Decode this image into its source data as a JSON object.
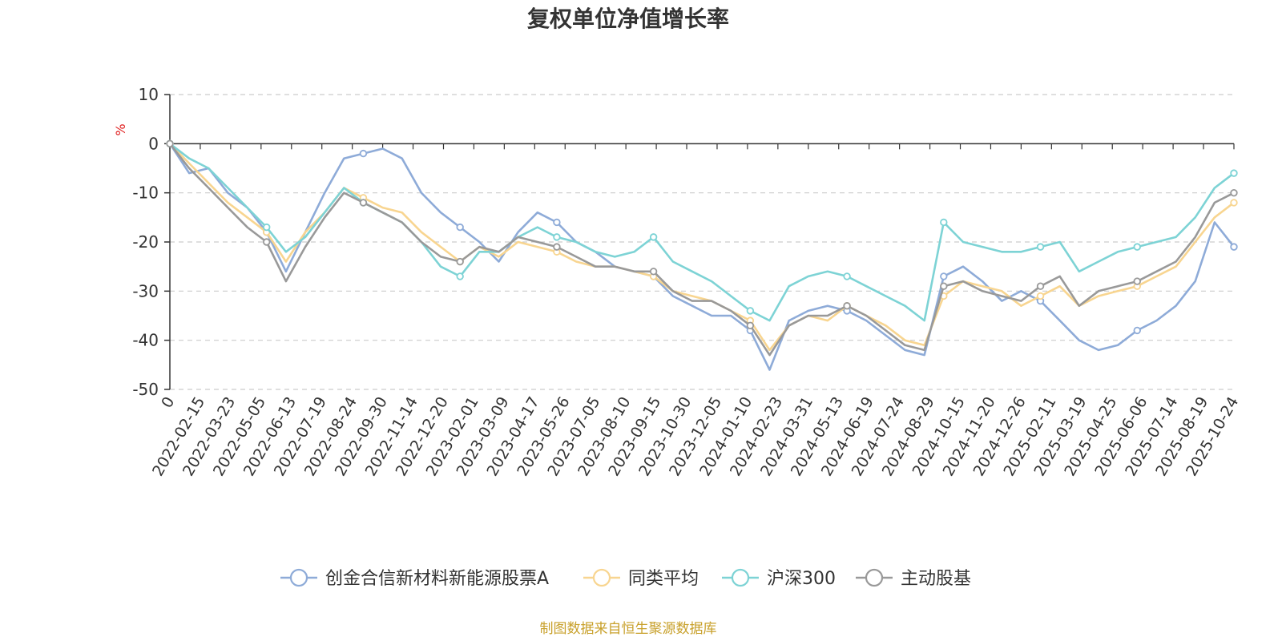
{
  "chart_data": {
    "type": "line",
    "title": "复权单位净值增长率",
    "ylabel": "%",
    "ylim": [
      -50,
      10
    ],
    "yticks": [
      10,
      0,
      -10,
      -20,
      -30,
      -40,
      -50
    ],
    "xticks": [
      "0",
      "2022-02-15",
      "2022-03-23",
      "2022-05-05",
      "2022-06-13",
      "2022-07-19",
      "2022-08-24",
      "2022-09-30",
      "2022-11-14",
      "2022-12-20",
      "2023-02-01",
      "2023-03-09",
      "2023-04-17",
      "2023-05-26",
      "2023-07-05",
      "2023-08-10",
      "2023-09-15",
      "2023-10-30",
      "2023-12-05",
      "2024-01-10",
      "2024-02-23",
      "2024-03-31",
      "2024-05-13",
      "2024-06-19",
      "2024-07-24",
      "2024-08-29",
      "2024-10-15",
      "2024-11-20",
      "2024-12-26",
      "2025-02-11",
      "2025-03-19",
      "2025-04-25",
      "2025-06-06",
      "2025-07-14",
      "2025-08-19",
      "2025-10-24"
    ],
    "grid": true,
    "legend_position": "bottom",
    "series": [
      {
        "name": "创金合信新材料新能源股票A",
        "color": "#8eabd8",
        "values": [
          0,
          -6,
          -5,
          -10,
          -13,
          -18,
          -26,
          -18,
          -10,
          -3,
          -2,
          -1,
          -3,
          -10,
          -14,
          -17,
          -20,
          -24,
          -18,
          -14,
          -16,
          -20,
          -22,
          -25,
          -26,
          -27,
          -31,
          -33,
          -35,
          -35,
          -38,
          -46,
          -36,
          -34,
          -33,
          -34,
          -36,
          -39,
          -42,
          -43,
          -27,
          -25,
          -28,
          -32,
          -30,
          -32,
          -36,
          -40,
          -42,
          -41,
          -38,
          -36,
          -33,
          -28,
          -16,
          -21
        ]
      },
      {
        "name": "同类平均",
        "color": "#f8d590",
        "values": [
          0,
          -4,
          -8,
          -12,
          -15,
          -18,
          -24,
          -18,
          -14,
          -9,
          -11,
          -13,
          -14,
          -18,
          -21,
          -24,
          -21,
          -23,
          -20,
          -21,
          -22,
          -24,
          -25,
          -25,
          -26,
          -27,
          -30,
          -31,
          -32,
          -34,
          -36,
          -42,
          -37,
          -35,
          -36,
          -33,
          -35,
          -37,
          -40,
          -41,
          -31,
          -28,
          -29,
          -30,
          -33,
          -31,
          -29,
          -33,
          -31,
          -30,
          -29,
          -27,
          -25,
          -20,
          -15,
          -12
        ]
      },
      {
        "name": "沪深300",
        "color": "#7dd3d5",
        "values": [
          0,
          -3,
          -5,
          -9,
          -13,
          -17,
          -22,
          -19,
          -14,
          -9,
          -12,
          -14,
          -16,
          -20,
          -25,
          -27,
          -22,
          -22,
          -19,
          -17,
          -19,
          -20,
          -22,
          -23,
          -22,
          -19,
          -24,
          -26,
          -28,
          -31,
          -34,
          -36,
          -29,
          -27,
          -26,
          -27,
          -29,
          -31,
          -33,
          -36,
          -16,
          -20,
          -21,
          -22,
          -22,
          -21,
          -20,
          -26,
          -24,
          -22,
          -21,
          -20,
          -19,
          -15,
          -9,
          -6
        ]
      },
      {
        "name": "主动股基",
        "color": "#999999",
        "values": [
          0,
          -5,
          -9,
          -13,
          -17,
          -20,
          -28,
          -21,
          -15,
          -10,
          -12,
          -14,
          -16,
          -20,
          -23,
          -24,
          -21,
          -22,
          -19,
          -20,
          -21,
          -23,
          -25,
          -25,
          -26,
          -26,
          -30,
          -32,
          -32,
          -34,
          -37,
          -43,
          -37,
          -35,
          -35,
          -33,
          -35,
          -38,
          -41,
          -42,
          -29,
          -28,
          -30,
          -31,
          -32,
          -29,
          -27,
          -33,
          -30,
          -29,
          -28,
          -26,
          -24,
          -19,
          -12,
          -10
        ]
      }
    ]
  },
  "footer": {
    "source": "制图数据来自恒生聚源数据库"
  }
}
